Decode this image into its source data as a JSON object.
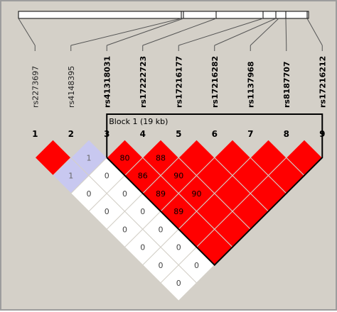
{
  "block_label": "Block 1 (19 kb)",
  "markers": [
    {
      "index": "1",
      "name": "rs2273697",
      "bold": false
    },
    {
      "index": "2",
      "name": "rs4148395",
      "bold": false
    },
    {
      "index": "3",
      "name": "rs41318031",
      "bold": true
    },
    {
      "index": "4",
      "name": "rs17222723",
      "bold": true
    },
    {
      "index": "5",
      "name": "rs17216177",
      "bold": true
    },
    {
      "index": "6",
      "name": "rs17216282",
      "bold": true
    },
    {
      "index": "7",
      "name": "rs1137968",
      "bold": true
    },
    {
      "index": "8",
      "name": "rs8187707",
      "bold": true
    },
    {
      "index": "9",
      "name": "rs17216212",
      "bold": true
    }
  ],
  "ld_cells": [
    {
      "i": 1,
      "j": 2,
      "label": "",
      "color": "#ff0000"
    },
    {
      "i": 1,
      "j": 3,
      "label": "1",
      "color": "#c8c8f0"
    },
    {
      "i": 1,
      "j": 4,
      "label": "0",
      "color": "#ffffff"
    },
    {
      "i": 1,
      "j": 5,
      "label": "0",
      "color": "#ffffff"
    },
    {
      "i": 1,
      "j": 6,
      "label": "0",
      "color": "#ffffff"
    },
    {
      "i": 1,
      "j": 7,
      "label": "0",
      "color": "#ffffff"
    },
    {
      "i": 1,
      "j": 8,
      "label": "0",
      "color": "#ffffff"
    },
    {
      "i": 1,
      "j": 9,
      "label": "0",
      "color": "#ffffff"
    },
    {
      "i": 2,
      "j": 3,
      "label": "1",
      "color": "#c8c8f0"
    },
    {
      "i": 2,
      "j": 4,
      "label": "0",
      "color": "#ffffff"
    },
    {
      "i": 2,
      "j": 5,
      "label": "0",
      "color": "#ffffff"
    },
    {
      "i": 2,
      "j": 6,
      "label": "0",
      "color": "#ffffff"
    },
    {
      "i": 2,
      "j": 7,
      "label": "0",
      "color": "#ffffff"
    },
    {
      "i": 2,
      "j": 8,
      "label": "0",
      "color": "#ffffff"
    },
    {
      "i": 2,
      "j": 9,
      "label": "0",
      "color": "#ffffff"
    },
    {
      "i": 3,
      "j": 4,
      "label": "80",
      "color": "#ff0000"
    },
    {
      "i": 3,
      "j": 5,
      "label": "86",
      "color": "#ff0000"
    },
    {
      "i": 3,
      "j": 6,
      "label": "89",
      "color": "#ff0000"
    },
    {
      "i": 3,
      "j": 7,
      "label": "89",
      "color": "#ff0000"
    },
    {
      "i": 3,
      "j": 8,
      "label": "",
      "color": "#ff0000"
    },
    {
      "i": 3,
      "j": 9,
      "label": "",
      "color": "#ff0000"
    },
    {
      "i": 4,
      "j": 5,
      "label": "88",
      "color": "#ff0000"
    },
    {
      "i": 4,
      "j": 6,
      "label": "90",
      "color": "#ff0000"
    },
    {
      "i": 4,
      "j": 7,
      "label": "90",
      "color": "#ff0000"
    },
    {
      "i": 4,
      "j": 8,
      "label": "",
      "color": "#ff0000"
    },
    {
      "i": 4,
      "j": 9,
      "label": "",
      "color": "#ff0000"
    },
    {
      "i": 5,
      "j": 6,
      "label": "",
      "color": "#ff0000"
    },
    {
      "i": 5,
      "j": 7,
      "label": "",
      "color": "#ff0000"
    },
    {
      "i": 5,
      "j": 8,
      "label": "",
      "color": "#ff0000"
    },
    {
      "i": 5,
      "j": 9,
      "label": "",
      "color": "#ff0000"
    },
    {
      "i": 6,
      "j": 7,
      "label": "",
      "color": "#ff0000"
    },
    {
      "i": 6,
      "j": 8,
      "label": "",
      "color": "#ff0000"
    },
    {
      "i": 6,
      "j": 9,
      "label": "",
      "color": "#ff0000"
    },
    {
      "i": 7,
      "j": 8,
      "label": "",
      "color": "#ff0000"
    },
    {
      "i": 7,
      "j": 9,
      "label": "",
      "color": "#ff0000"
    },
    {
      "i": 8,
      "j": 9,
      "label": "",
      "color": "#ff0000"
    }
  ],
  "colors": {
    "strong_ld": "#ff0000",
    "weak_ld": "#c8c8f0",
    "no_ld": "#ffffff",
    "frame_bg": "#d4d0c8"
  }
}
